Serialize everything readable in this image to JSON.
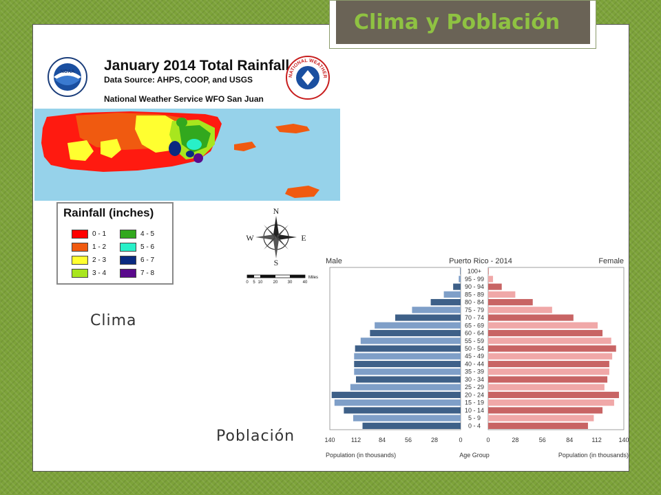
{
  "slide": {
    "title": "Clima y Población",
    "clima_label": "Clima",
    "poblacion_label": "Población"
  },
  "colors": {
    "background_green": "#7da33a",
    "title_bg": "#6a6356",
    "title_text": "#8fc242",
    "ocean": "#96d2ea",
    "male_bar": "#3e6088",
    "male_bar_light": "#7f9fc8",
    "female_bar": "#c86464",
    "female_bar_light": "#f0a8a8"
  },
  "map": {
    "title": "January 2014 Total Rainfall",
    "source": "Data Source: AHPS, COOP, and USGS",
    "office": "National Weather Service WFO San Juan",
    "noaa_logo_text": "NOAA",
    "nws_logo_text": "NATIONAL WEATHER SERVICE",
    "legend_title": "Rainfall (inches)",
    "legend": [
      {
        "label": "0 - 1",
        "color": "#ff0000"
      },
      {
        "label": "1 - 2",
        "color": "#f05a10"
      },
      {
        "label": "2 - 3",
        "color": "#ffff30"
      },
      {
        "label": "3 - 4",
        "color": "#a8e61e"
      },
      {
        "label": "4 - 5",
        "color": "#32a81e"
      },
      {
        "label": "5 - 6",
        "color": "#28f0c8"
      },
      {
        "label": "6 - 7",
        "color": "#0a2a80"
      },
      {
        "label": "7 - 8",
        "color": "#5a0a8c"
      }
    ],
    "compass": {
      "n": "N",
      "s": "S",
      "e": "E",
      "w": "W"
    },
    "scale_ticks": [
      "0",
      "5",
      "10",
      "20",
      "30",
      "40"
    ],
    "scale_unit": "Miles"
  },
  "chart_data": {
    "type": "bar",
    "title": "Puerto Rico - 2014",
    "left_label": "Male",
    "right_label": "Female",
    "xlabel_left": "Population (in thousands)",
    "xlabel_center": "Age Group",
    "xlabel_right": "Population (in thousands)",
    "xlim": [
      0,
      140
    ],
    "x_ticks_left": [
      "140",
      "112",
      "84",
      "56",
      "28",
      "0"
    ],
    "x_ticks_right": [
      "0",
      "28",
      "56",
      "84",
      "112",
      "140"
    ],
    "categories": [
      "100+",
      "95 - 99",
      "90 - 94",
      "85 - 89",
      "80 - 84",
      "75 - 79",
      "70 - 74",
      "65 - 69",
      "60 - 64",
      "55 - 59",
      "50 - 54",
      "45 - 49",
      "40 - 44",
      "35 - 39",
      "30 - 34",
      "25 - 29",
      "20 - 24",
      "15 - 19",
      "10 - 14",
      "5 - 9",
      "0 - 4"
    ],
    "series": [
      {
        "name": "Male",
        "values": [
          0.5,
          2,
          8,
          18,
          32,
          52,
          70,
          92,
          97,
          107,
          113,
          114,
          114,
          114,
          112,
          118,
          138,
          135,
          125,
          115,
          105
        ]
      },
      {
        "name": "Female",
        "values": [
          0.5,
          5,
          14,
          28,
          46,
          66,
          88,
          113,
          118,
          127,
          132,
          128,
          125,
          125,
          123,
          120,
          135,
          130,
          118,
          109,
          103
        ]
      }
    ]
  }
}
